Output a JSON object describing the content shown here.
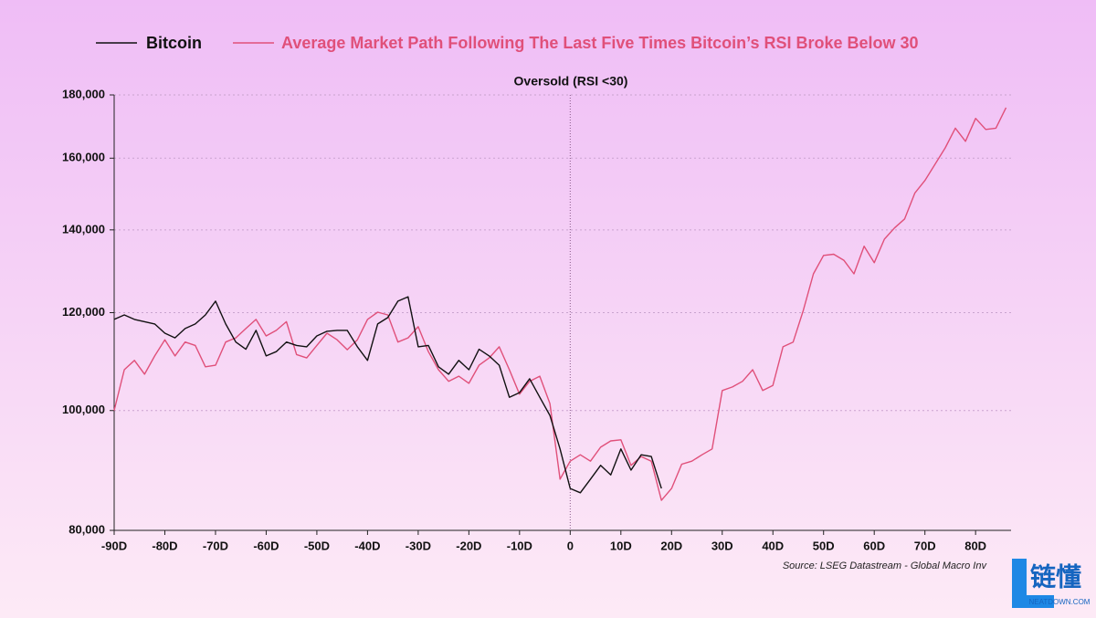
{
  "chart_data": {
    "type": "line",
    "annotation": {
      "text": "Oversold (RSI <30)",
      "x": 0
    },
    "source": "Source: LSEG Datastream - Global Macro Inv",
    "yscale": "log",
    "grid": true,
    "xlim": [
      -90,
      87
    ],
    "ylim": [
      80000,
      180000
    ],
    "xticks": [
      {
        "value": -90,
        "label": "-90D"
      },
      {
        "value": -80,
        "label": "-80D"
      },
      {
        "value": -70,
        "label": "-70D"
      },
      {
        "value": -60,
        "label": "-60D"
      },
      {
        "value": -50,
        "label": "-50D"
      },
      {
        "value": -40,
        "label": "-40D"
      },
      {
        "value": -30,
        "label": "-30D"
      },
      {
        "value": -20,
        "label": "-20D"
      },
      {
        "value": -10,
        "label": "-10D"
      },
      0,
      {
        "value": 10,
        "label": "10D"
      },
      {
        "value": 20,
        "label": "20D"
      },
      {
        "value": 30,
        "label": "30D"
      },
      {
        "value": 40,
        "label": "40D"
      },
      {
        "value": 50,
        "label": "50D"
      },
      {
        "value": 60,
        "label": "60D"
      },
      {
        "value": 70,
        "label": "70D"
      },
      {
        "value": 80,
        "label": "80D"
      }
    ],
    "yticks": [
      {
        "value": 80000,
        "label": "80,000"
      },
      {
        "value": 100000,
        "label": "100,000"
      },
      {
        "value": 120000,
        "label": "120,000"
      },
      {
        "value": 140000,
        "label": "140,000"
      },
      {
        "value": 160000,
        "label": "160,000"
      },
      {
        "value": 180000,
        "label": "180,000"
      }
    ],
    "series": [
      {
        "name": "Bitcoin",
        "color": "#111111",
        "x": [
          -90,
          -88,
          -86,
          -84,
          -82,
          -80,
          -78,
          -76,
          -74,
          -72,
          -70,
          -68,
          -66,
          -64,
          -62,
          -60,
          -58,
          -56,
          -54,
          -52,
          -50,
          -48,
          -46,
          -44,
          -42,
          -40,
          -38,
          -36,
          -34,
          -32,
          -30,
          -28,
          -26,
          -24,
          -22,
          -20,
          -18,
          -16,
          -14,
          -12,
          -10,
          -8,
          -6,
          -4,
          -2,
          0,
          2,
          4,
          6,
          8,
          10,
          12,
          14,
          16,
          18
        ],
        "values": [
          118500,
          119500,
          118500,
          118000,
          117500,
          115500,
          114500,
          116500,
          117500,
          119500,
          122600,
          117500,
          113600,
          112100,
          116100,
          110700,
          111600,
          113600,
          112900,
          112600,
          114900,
          115900,
          116100,
          116100,
          112600,
          109800,
          117500,
          118900,
          122600,
          123600,
          112600,
          112900,
          108500,
          107000,
          109800,
          107900,
          112100,
          110700,
          108800,
          102500,
          103400,
          106100,
          102500,
          99100,
          93100,
          86500,
          85800,
          88000,
          90300,
          88700,
          93100,
          89500,
          92100,
          91800,
          86500
        ]
      },
      {
        "name": "Average Market Path Following The Last Five Times Bitcoin’s RSI Broke Below 30",
        "color": "#e0507a",
        "x": [
          -90,
          -88,
          -86,
          -84,
          -82,
          -80,
          -78,
          -76,
          -74,
          -72,
          -70,
          -68,
          -66,
          -64,
          -62,
          -60,
          -58,
          -56,
          -54,
          -52,
          -50,
          -48,
          -46,
          -44,
          -42,
          -40,
          -38,
          -36,
          -34,
          -32,
          -30,
          -28,
          -26,
          -24,
          -22,
          -20,
          -18,
          -16,
          -14,
          -12,
          -10,
          -8,
          -6,
          -4,
          -2,
          0,
          2,
          4,
          6,
          8,
          10,
          12,
          14,
          16,
          18,
          20,
          22,
          24,
          26,
          28,
          30,
          32,
          34,
          36,
          38,
          40,
          42,
          44,
          46,
          48,
          50,
          52,
          54,
          56,
          58,
          60,
          62,
          64,
          66,
          68,
          70,
          72,
          74,
          76,
          78,
          80,
          82,
          84,
          86
        ],
        "values": [
          100000,
          107900,
          109800,
          107000,
          110700,
          114100,
          110700,
          113600,
          112900,
          108500,
          108800,
          113600,
          114500,
          116500,
          118500,
          114900,
          116100,
          118000,
          111000,
          110300,
          112900,
          115500,
          114100,
          112000,
          114100,
          118500,
          120100,
          119500,
          113600,
          114500,
          116900,
          111600,
          107900,
          105600,
          106600,
          105200,
          108800,
          110300,
          112600,
          107900,
          103100,
          105600,
          106600,
          101300,
          88000,
          91000,
          92100,
          91000,
          93400,
          94500,
          94700,
          90300,
          91800,
          91000,
          84600,
          86500,
          90500,
          91000,
          92100,
          93100,
          103800,
          104500,
          105600,
          107900,
          103800,
          104800,
          112600,
          113600,
          120500,
          129000,
          133500,
          133800,
          132300,
          129000,
          135800,
          131700,
          137600,
          140500,
          142900,
          149900,
          153500,
          158200,
          163100,
          169200,
          165100,
          172300,
          168800,
          169200,
          175800
        ]
      }
    ]
  },
  "watermark": {
    "logo": "链懂",
    "site": "NEATDOWN.COM"
  }
}
